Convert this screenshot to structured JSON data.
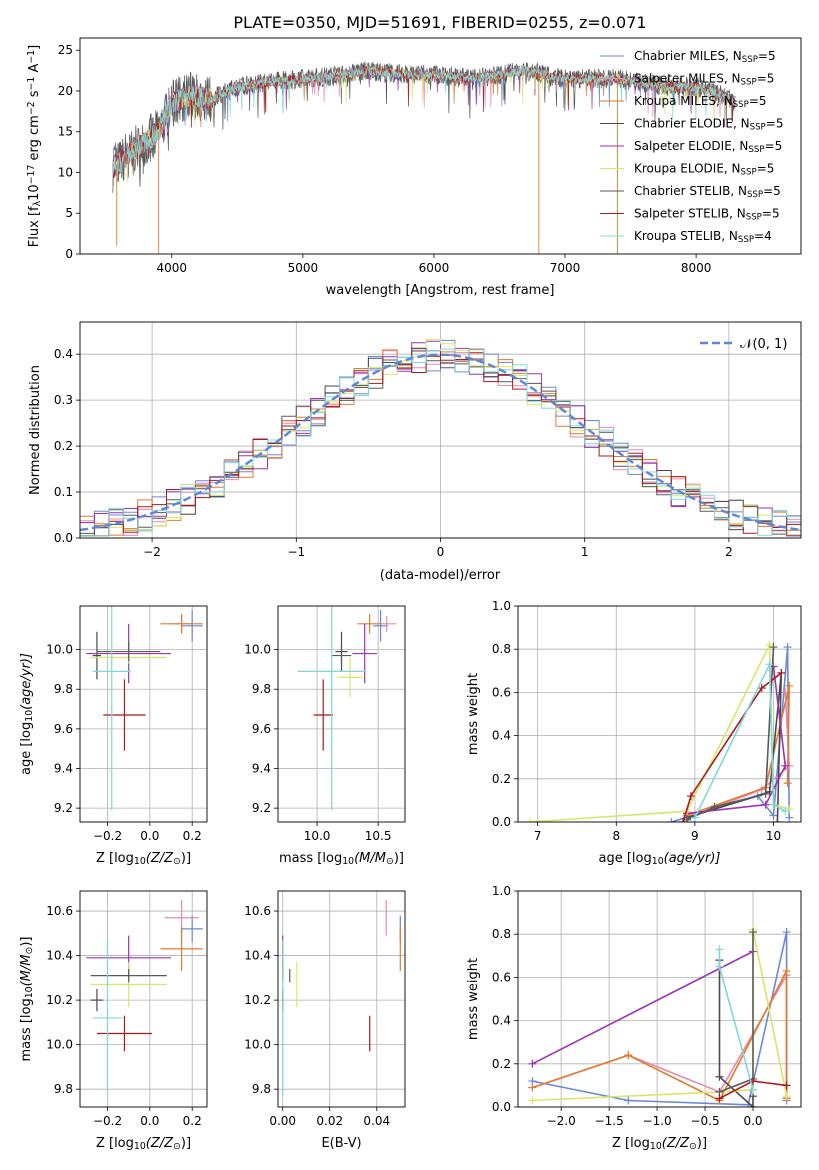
{
  "figure_title": "PLATE=0350, MJD=51691, FIBERID=0255, z=0.071",
  "colors": {
    "Chabrier MILES": "#6a88d6",
    "Salpeter MILES": "#e889b5",
    "Kroupa MILES": "#e07b2c",
    "Chabrier ELODIE": "#4a4a4a",
    "Salpeter ELODIE": "#9b33b3",
    "Kroupa ELODIE": "#d9e66a",
    "Chabrier STELIB": "#5a5a5a",
    "Salpeter STELIB": "#a81b1b",
    "Kroupa STELIB": "#7fd8d8",
    "normal_curve": "#5b87d6"
  },
  "chart_data": [
    {
      "type": "line",
      "title": "PLATE=0350, MJD=51691, FIBERID=0255, z=0.071",
      "xlabel": "wavelength [Angstrom, rest frame]",
      "ylabel": "Flux [f",
      "ylabel_parts": [
        "Flux [f",
        "λ",
        "10",
        "−17",
        " erg cm",
        "−2",
        " s",
        "−1",
        " A",
        "−1",
        "]"
      ],
      "xlim": [
        3300,
        8800
      ],
      "ylim": [
        0,
        26.5
      ],
      "xticks": [
        4000,
        5000,
        6000,
        7000,
        8000
      ],
      "yticks": [
        0,
        5,
        10,
        15,
        20,
        25
      ],
      "grid": false,
      "legend_position": "right",
      "continuum_x": [
        3550,
        3700,
        3900,
        4000,
        4150,
        4300,
        4500,
        4700,
        5000,
        5300,
        5500,
        5800,
        6000,
        6300,
        6500,
        6700,
        7000,
        7200,
        7400,
        7600,
        7800,
        8000,
        8200,
        8300
      ],
      "continuum_y": [
        10.5,
        12.5,
        15,
        18.5,
        19.5,
        19,
        20.5,
        21,
        21.5,
        22,
        22.5,
        22,
        22,
        21.5,
        22,
        22.5,
        21.5,
        21.5,
        21.5,
        21,
        20.5,
        20.5,
        19.5,
        18.5
      ],
      "spikes": [
        {
          "x": 3900,
          "y": 0
        },
        {
          "x": 6800,
          "y": 0
        },
        {
          "x": 7400,
          "y": 0
        },
        {
          "x": 3580,
          "y": 1
        }
      ],
      "series": [
        {
          "name_parts": [
            "Chabrier MILES, N",
            "SSP",
            "=5"
          ]
        },
        {
          "name_parts": [
            "Salpeter MILES, N",
            "SSP",
            "=5"
          ]
        },
        {
          "name_parts": [
            "Kroupa MILES, N",
            "SSP",
            "=5"
          ]
        },
        {
          "name_parts": [
            "Chabrier ELODIE, N",
            "SSP",
            "=5"
          ]
        },
        {
          "name_parts": [
            "Salpeter ELODIE, N",
            "SSP",
            "=5"
          ]
        },
        {
          "name_parts": [
            "Kroupa ELODIE, N",
            "SSP",
            "=5"
          ]
        },
        {
          "name_parts": [
            "Chabrier STELIB, N",
            "SSP",
            "=5"
          ]
        },
        {
          "name_parts": [
            "Salpeter STELIB, N",
            "SSP",
            "=5"
          ]
        },
        {
          "name_parts": [
            "Kroupa STELIB, N",
            "SSP",
            "=4"
          ]
        }
      ]
    },
    {
      "type": "line",
      "xlabel": "(data-model)/error",
      "ylabel": "Normed distribution",
      "xlim": [
        -2.5,
        2.5
      ],
      "ylim": [
        0,
        0.47
      ],
      "xticks": [
        -2,
        -1,
        0,
        1,
        2
      ],
      "xtick_labels": [
        "−2",
        "−1",
        "0",
        "1",
        "2"
      ],
      "yticks": [
        0,
        0.1,
        0.2,
        0.3,
        0.4
      ],
      "ytick_labels": [
        "0.0",
        "0.1",
        "0.2",
        "0.3",
        "0.4"
      ],
      "grid": true,
      "legend_position": "top-right",
      "curve_label": "𝒩(0, 1)",
      "bin_width": 0.1,
      "description_of_histograms": "nine normalized residual histograms following N(0,1)"
    },
    {
      "type": "scatter",
      "xlabel_parts": [
        "Z [log",
        "10",
        "(Z/Z",
        "⊙",
        ")]"
      ],
      "ylabel_parts": [
        "age  [log",
        "10",
        "(age/yr)]"
      ],
      "xlim": [
        -0.33,
        0.27
      ],
      "ylim": [
        9.13,
        10.22
      ],
      "xticks": [
        -0.2,
        0.0,
        0.2
      ],
      "xtick_labels": [
        "−0.2",
        "0.0",
        "0.2"
      ],
      "yticks": [
        9.2,
        9.4,
        9.6,
        9.8,
        10.0
      ],
      "ytick_labels": [
        "9.2",
        "9.4",
        "9.6",
        "9.8",
        "10.0"
      ],
      "grid": true,
      "points": [
        {
          "series": "Chabrier MILES",
          "x": 0.2,
          "y": 10.12,
          "xerr": 0.05,
          "yerr": 0.08
        },
        {
          "series": "Salpeter MILES",
          "x": 0.15,
          "y": 10.13,
          "xerr": 0.05,
          "yerr": 0.04
        },
        {
          "series": "Kroupa MILES",
          "x": 0.15,
          "y": 10.13,
          "xerr": 0.1,
          "yerr": 0.05
        },
        {
          "series": "Chabrier ELODIE",
          "x": -0.25,
          "y": 9.97,
          "xerr": 0.02,
          "yerr": 0.12
        },
        {
          "series": "Salpeter ELODIE",
          "x": -0.1,
          "y": 9.98,
          "xerr": 0.2,
          "yerr": 0.15
        },
        {
          "series": "Kroupa ELODIE",
          "x": -0.1,
          "y": 9.96,
          "xerr": 0.18,
          "yerr": 0.03
        },
        {
          "series": "Chabrier STELIB",
          "x": -0.1,
          "y": 9.99,
          "xerr": 0.15,
          "yerr": 0.05
        },
        {
          "series": "Salpeter STELIB",
          "x": -0.12,
          "y": 9.67,
          "xerr": 0.1,
          "yerr": 0.18
        },
        {
          "series": "Kroupa STELIB",
          "x": -0.18,
          "y": 9.89,
          "xerr": 0.09,
          "yerr": 0.7
        }
      ]
    },
    {
      "type": "scatter",
      "xlabel_parts": [
        "mass [log",
        "10",
        "(M/M",
        "⊙",
        ")]"
      ],
      "xlim": [
        9.68,
        10.72
      ],
      "ylim": [
        9.13,
        10.22
      ],
      "xticks": [
        10.0,
        10.5
      ],
      "xtick_labels": [
        "10.0",
        "10.5"
      ],
      "yticks": [
        9.2,
        9.4,
        9.6,
        9.8,
        10.0
      ],
      "ytick_labels": [
        "9.2",
        "9.4",
        "9.6",
        "9.8",
        "10.0"
      ],
      "grid": true,
      "points": [
        {
          "series": "Chabrier MILES",
          "x": 10.52,
          "y": 10.12,
          "xerr": 0.06,
          "yerr": 0.08
        },
        {
          "series": "Salpeter MILES",
          "x": 10.57,
          "y": 10.13,
          "xerr": 0.08,
          "yerr": 0.04
        },
        {
          "series": "Kroupa MILES",
          "x": 10.43,
          "y": 10.13,
          "xerr": 0.1,
          "yerr": 0.05
        },
        {
          "series": "Chabrier ELODIE",
          "x": 10.2,
          "y": 9.99,
          "xerr": 0.05,
          "yerr": 0.1
        },
        {
          "series": "Salpeter ELODIE",
          "x": 10.39,
          "y": 9.98,
          "xerr": 0.1,
          "yerr": 0.15
        },
        {
          "series": "Kroupa ELODIE",
          "x": 10.27,
          "y": 9.86,
          "xerr": 0.1,
          "yerr": 0.1
        },
        {
          "series": "Chabrier STELIB",
          "x": 10.2,
          "y": 9.97,
          "xerr": 0.08,
          "yerr": 0.05
        },
        {
          "series": "Salpeter STELIB",
          "x": 10.05,
          "y": 9.67,
          "xerr": 0.08,
          "yerr": 0.18
        },
        {
          "series": "Kroupa STELIB",
          "x": 10.12,
          "y": 9.89,
          "xerr": 0.28,
          "yerr": 0.7
        }
      ]
    },
    {
      "type": "line",
      "xlabel_parts": [
        "age  [log",
        "10",
        "(age/yr)]"
      ],
      "ylabel": "mass weight",
      "xlim": [
        6.75,
        10.35
      ],
      "ylim": [
        0,
        1.0
      ],
      "xticks": [
        7,
        8,
        9,
        10
      ],
      "yticks": [
        0,
        0.2,
        0.4,
        0.6,
        0.8,
        1.0
      ],
      "ytick_labels": [
        "0.0",
        "0.2",
        "0.4",
        "0.6",
        "0.8",
        "1.0"
      ],
      "grid": true,
      "series": [
        {
          "name": "Chabrier MILES",
          "x": [
            8.7,
            9.8,
            10.0,
            10.18,
            10.2
          ],
          "y": [
            0.0,
            0.12,
            0.03,
            0.81,
            0.02
          ]
        },
        {
          "name": "Salpeter MILES",
          "x": [
            8.9,
            9.85,
            10.2,
            10.15
          ],
          "y": [
            0.02,
            0.15,
            0.26,
            0.6
          ]
        },
        {
          "name": "Kroupa MILES",
          "x": [
            8.9,
            9.9,
            10.2,
            10.18
          ],
          "y": [
            0.03,
            0.16,
            0.63,
            0.18
          ]
        },
        {
          "name": "Chabrier ELODIE",
          "x": [
            8.9,
            9.95,
            10.1,
            10.05
          ],
          "y": [
            0.02,
            0.14,
            0.69,
            0.0
          ]
        },
        {
          "name": "Salpeter ELODIE",
          "x": [
            8.9,
            9.9,
            10.15,
            10.0
          ],
          "y": [
            0.04,
            0.08,
            0.26,
            0.72
          ]
        },
        {
          "name": "Kroupa ELODIE",
          "x": [
            6.9,
            8.9,
            9.95,
            10.0,
            10.2
          ],
          "y": [
            0.0,
            0.05,
            0.82,
            0.08,
            0.06
          ]
        },
        {
          "name": "Chabrier STELIB",
          "x": [
            8.9,
            9.25,
            9.9,
            10.0
          ],
          "y": [
            0.01,
            0.07,
            0.13,
            0.81
          ]
        },
        {
          "name": "Salpeter STELIB",
          "x": [
            8.85,
            8.95,
            9.85,
            10.1
          ],
          "y": [
            0.0,
            0.12,
            0.62,
            0.69
          ]
        },
        {
          "name": "Kroupa STELIB",
          "x": [
            9.0,
            9.95,
            10.0,
            10.15
          ],
          "y": [
            0.02,
            0.73,
            0.08,
            0.05
          ]
        }
      ]
    },
    {
      "type": "scatter",
      "xlabel_parts": [
        "Z [log",
        "10",
        "(Z/Z",
        "⊙",
        ")]"
      ],
      "ylabel_parts": [
        "mass [log",
        "10",
        "(M/M",
        "⊙",
        ")]"
      ],
      "xlim": [
        -0.33,
        0.27
      ],
      "ylim": [
        9.72,
        10.69
      ],
      "xticks": [
        -0.2,
        0.0,
        0.2
      ],
      "xtick_labels": [
        "−0.2",
        "0.0",
        "0.2"
      ],
      "yticks": [
        9.8,
        10.0,
        10.2,
        10.4,
        10.6
      ],
      "ytick_labels": [
        "9.8",
        "10.0",
        "10.2",
        "10.4",
        "10.6"
      ],
      "grid": true,
      "points": [
        {
          "series": "Chabrier MILES",
          "x": 0.2,
          "y": 10.52,
          "xerr": 0.05,
          "yerr": 0.06
        },
        {
          "series": "Salpeter MILES",
          "x": 0.15,
          "y": 10.57,
          "xerr": 0.08,
          "yerr": 0.08
        },
        {
          "series": "Kroupa MILES",
          "x": 0.15,
          "y": 10.43,
          "xerr": 0.1,
          "yerr": 0.1
        },
        {
          "series": "Chabrier ELODIE",
          "x": -0.25,
          "y": 10.2,
          "xerr": 0.03,
          "yerr": 0.05
        },
        {
          "series": "Salpeter ELODIE",
          "x": -0.1,
          "y": 10.39,
          "xerr": 0.2,
          "yerr": 0.1
        },
        {
          "series": "Kroupa ELODIE",
          "x": -0.1,
          "y": 10.27,
          "xerr": 0.18,
          "yerr": 0.1
        },
        {
          "series": "Chabrier STELIB",
          "x": -0.1,
          "y": 10.31,
          "xerr": 0.18,
          "yerr": 0.03
        },
        {
          "series": "Salpeter STELIB",
          "x": -0.12,
          "y": 10.05,
          "xerr": 0.13,
          "yerr": 0.08
        },
        {
          "series": "Kroupa STELIB",
          "x": -0.2,
          "y": 10.12,
          "xerr": 0.07,
          "yerr": 0.35
        }
      ]
    },
    {
      "type": "scatter",
      "xlabel": "E(B-V)",
      "xlim": [
        -0.002,
        0.052
      ],
      "ylim": [
        9.72,
        10.69
      ],
      "xticks": [
        0.0,
        0.02,
        0.04
      ],
      "xtick_labels": [
        "0.00",
        "0.02",
        "0.04"
      ],
      "yticks": [
        9.8,
        10.0,
        10.2,
        10.4,
        10.6
      ],
      "ytick_labels": [
        "9.8",
        "10.0",
        "10.2",
        "10.4",
        "10.6"
      ],
      "grid": true,
      "points": [
        {
          "series": "Chabrier MILES",
          "x": 0.05,
          "y": 10.52,
          "yerr": 0.06
        },
        {
          "series": "Salpeter MILES",
          "x": 0.044,
          "y": 10.57,
          "yerr": 0.08
        },
        {
          "series": "Kroupa MILES",
          "x": 0.05,
          "y": 10.43,
          "yerr": 0.1
        },
        {
          "series": "Chabrier ELODIE",
          "x": 0.0,
          "y": 10.2,
          "yerr": 0.05
        },
        {
          "series": "Salpeter ELODIE",
          "x": 0.0,
          "y": 10.39,
          "yerr": 0.1
        },
        {
          "series": "Kroupa ELODIE",
          "x": 0.006,
          "y": 10.27,
          "yerr": 0.1
        },
        {
          "series": "Chabrier STELIB",
          "x": 0.003,
          "y": 10.31,
          "yerr": 0.03
        },
        {
          "series": "Salpeter STELIB",
          "x": 0.037,
          "y": 10.05,
          "yerr": 0.08
        },
        {
          "series": "Kroupa STELIB",
          "x": 0.0,
          "y": 10.12,
          "yerr": 0.35
        }
      ]
    },
    {
      "type": "line",
      "xlabel_parts": [
        "Z [log",
        "10",
        "(Z/Z",
        "⊙",
        ")]"
      ],
      "ylabel": "mass weight",
      "xlim": [
        -2.45,
        0.5
      ],
      "ylim": [
        0,
        1.0
      ],
      "xticks": [
        -2.0,
        -1.5,
        -1.0,
        -0.5,
        0.0
      ],
      "xtick_labels": [
        "−2.0",
        "−1.5",
        "−1.0",
        "−0.5",
        "0.0"
      ],
      "yticks": [
        0,
        0.2,
        0.4,
        0.6,
        0.8,
        1.0
      ],
      "ytick_labels": [
        "0.0",
        "0.2",
        "0.4",
        "0.6",
        "0.8",
        "1.0"
      ],
      "grid": true,
      "series": [
        {
          "name": "Chabrier MILES",
          "x": [
            -2.3,
            -1.3,
            -0.05,
            0.35,
            0.35
          ],
          "y": [
            0.12,
            0.03,
            0.01,
            0.81,
            0.03
          ]
        },
        {
          "name": "Salpeter MILES",
          "x": [
            -2.3,
            -1.3,
            -0.35,
            0.35,
            0.35
          ],
          "y": [
            0.09,
            0.24,
            0.07,
            0.61,
            0.04
          ]
        },
        {
          "name": "Kroupa MILES",
          "x": [
            -2.3,
            -1.3,
            -0.35,
            0.35,
            0.35
          ],
          "y": [
            0.09,
            0.24,
            0.03,
            0.63,
            0.04
          ]
        },
        {
          "name": "Chabrier ELODIE",
          "x": [
            -0.35,
            -0.35,
            0.0,
            0.0
          ],
          "y": [
            0.68,
            0.14,
            0.0,
            0.05
          ]
        },
        {
          "name": "Salpeter ELODIE",
          "x": [
            -2.3,
            0.0
          ],
          "y": [
            0.2,
            0.72
          ]
        },
        {
          "name": "Kroupa ELODIE",
          "x": [
            -2.3,
            -0.35,
            0.0,
            0.0,
            0.35
          ],
          "y": [
            0.03,
            0.07,
            0.08,
            0.82,
            0.05
          ]
        },
        {
          "name": "Chabrier STELIB",
          "x": [
            -0.35,
            0.0,
            0.0
          ],
          "y": [
            0.07,
            0.13,
            0.81
          ]
        },
        {
          "name": "Salpeter STELIB",
          "x": [
            -0.35,
            0.0,
            0.35
          ],
          "y": [
            0.04,
            0.12,
            0.1
          ]
        },
        {
          "name": "Kroupa STELIB",
          "x": [
            -0.35,
            -0.35,
            0.0
          ],
          "y": [
            0.73,
            0.65,
            0.08
          ]
        }
      ]
    }
  ]
}
